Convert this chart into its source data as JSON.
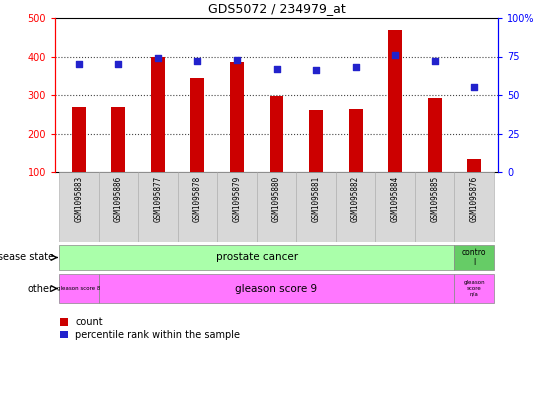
{
  "title": "GDS5072 / 234979_at",
  "samples": [
    "GSM1095883",
    "GSM1095886",
    "GSM1095877",
    "GSM1095878",
    "GSM1095879",
    "GSM1095880",
    "GSM1095881",
    "GSM1095882",
    "GSM1095884",
    "GSM1095885",
    "GSM1095876"
  ],
  "counts": [
    268,
    268,
    400,
    343,
    385,
    298,
    262,
    264,
    468,
    292,
    135
  ],
  "percentiles": [
    70,
    70,
    74,
    72,
    73,
    67,
    66,
    68,
    76,
    72,
    55
  ],
  "ylim_left": [
    100,
    500
  ],
  "ylim_right": [
    0,
    100
  ],
  "yticks_left": [
    100,
    200,
    300,
    400,
    500
  ],
  "yticks_right": [
    0,
    25,
    50,
    75,
    100
  ],
  "bar_color": "#cc0000",
  "dot_color": "#2222cc",
  "bar_width": 0.35,
  "disease_state_color": "#aaffaa",
  "disease_state_control_color": "#66cc66",
  "other_color": "#ff77ff",
  "background_color": "#ffffff",
  "plot_bg_color": "#ffffff",
  "xtick_bg_color": "#d8d8d8",
  "grid_color": "#444444",
  "grid_levels": [
    200,
    300,
    400
  ]
}
